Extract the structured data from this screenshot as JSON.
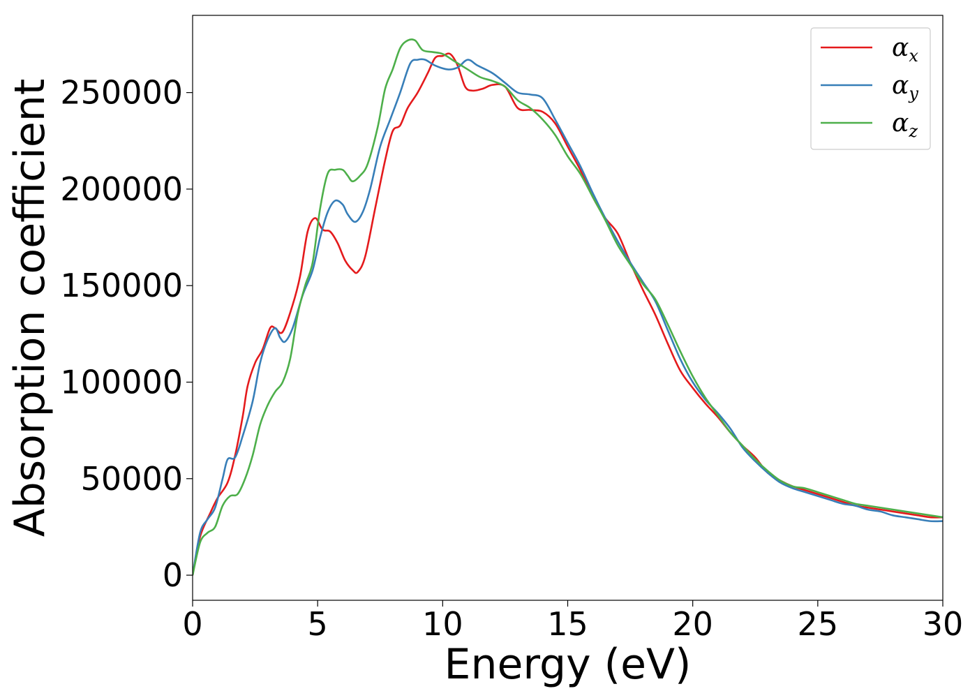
{
  "chart_data": {
    "type": "line",
    "title": "",
    "xlabel": "Energy (eV)",
    "ylabel": "Absorption coefficient",
    "xlim": [
      0,
      30
    ],
    "ylim": [
      -13000,
      290000
    ],
    "xticks": [
      0,
      5,
      10,
      15,
      20,
      25,
      30
    ],
    "yticks": [
      0,
      50000,
      100000,
      150000,
      200000,
      250000
    ],
    "grid": false,
    "legend_position": "top-right",
    "series": [
      {
        "name": "αx",
        "symbol": "α",
        "subscript": "x",
        "color": "#e41a1c",
        "points": [
          [
            0,
            0
          ],
          [
            0.3,
            20000
          ],
          [
            0.7,
            32000
          ],
          [
            1.0,
            40000
          ],
          [
            1.4,
            48000
          ],
          [
            1.7,
            62000
          ],
          [
            2.0,
            82000
          ],
          [
            2.2,
            98000
          ],
          [
            2.5,
            110000
          ],
          [
            2.8,
            117000
          ],
          [
            3.1,
            128000
          ],
          [
            3.3,
            128000
          ],
          [
            3.6,
            126000
          ],
          [
            4.0,
            140000
          ],
          [
            4.3,
            155000
          ],
          [
            4.6,
            178000
          ],
          [
            4.9,
            185000
          ],
          [
            5.2,
            179000
          ],
          [
            5.5,
            178000
          ],
          [
            5.8,
            172000
          ],
          [
            6.1,
            163000
          ],
          [
            6.4,
            158000
          ],
          [
            6.6,
            157000
          ],
          [
            6.9,
            165000
          ],
          [
            7.3,
            190000
          ],
          [
            7.7,
            215000
          ],
          [
            8.0,
            230000
          ],
          [
            8.3,
            233000
          ],
          [
            8.6,
            242000
          ],
          [
            9.0,
            250000
          ],
          [
            9.4,
            260000
          ],
          [
            9.7,
            268000
          ],
          [
            10.0,
            269000
          ],
          [
            10.3,
            270000
          ],
          [
            10.6,
            264000
          ],
          [
            10.9,
            253000
          ],
          [
            11.2,
            251000
          ],
          [
            11.6,
            252000
          ],
          [
            12.0,
            254000
          ],
          [
            12.5,
            253000
          ],
          [
            13.0,
            242000
          ],
          [
            13.5,
            241000
          ],
          [
            14.0,
            240000
          ],
          [
            14.5,
            234000
          ],
          [
            15.0,
            222000
          ],
          [
            15.5,
            210000
          ],
          [
            16.0,
            196000
          ],
          [
            16.5,
            185000
          ],
          [
            17.0,
            177000
          ],
          [
            17.5,
            162000
          ],
          [
            18.0,
            148000
          ],
          [
            18.5,
            135000
          ],
          [
            19.0,
            120000
          ],
          [
            19.5,
            106000
          ],
          [
            20.0,
            97000
          ],
          [
            20.5,
            89000
          ],
          [
            21.0,
            82000
          ],
          [
            21.5,
            74000
          ],
          [
            22.0,
            67000
          ],
          [
            22.5,
            61000
          ],
          [
            23.0,
            53000
          ],
          [
            23.5,
            49000
          ],
          [
            24.0,
            46000
          ],
          [
            24.5,
            44000
          ],
          [
            25.0,
            42000
          ],
          [
            25.5,
            40000
          ],
          [
            26.0,
            38000
          ],
          [
            26.5,
            36000
          ],
          [
            27.0,
            35000
          ],
          [
            27.5,
            34000
          ],
          [
            28.0,
            33000
          ],
          [
            28.5,
            32000
          ],
          [
            29.0,
            31000
          ],
          [
            29.5,
            30000
          ],
          [
            30.0,
            30000
          ]
        ]
      },
      {
        "name": "αy",
        "symbol": "α",
        "subscript": "y",
        "color": "#377eb8",
        "points": [
          [
            0,
            0
          ],
          [
            0.3,
            22000
          ],
          [
            0.6,
            29000
          ],
          [
            0.9,
            35000
          ],
          [
            1.2,
            50000
          ],
          [
            1.4,
            60000
          ],
          [
            1.7,
            61000
          ],
          [
            2.0,
            72000
          ],
          [
            2.4,
            90000
          ],
          [
            2.7,
            110000
          ],
          [
            3.0,
            122000
          ],
          [
            3.3,
            128000
          ],
          [
            3.5,
            123000
          ],
          [
            3.7,
            121000
          ],
          [
            4.0,
            128000
          ],
          [
            4.4,
            145000
          ],
          [
            4.8,
            158000
          ],
          [
            5.1,
            175000
          ],
          [
            5.4,
            188000
          ],
          [
            5.7,
            194000
          ],
          [
            6.0,
            192000
          ],
          [
            6.2,
            187000
          ],
          [
            6.5,
            183000
          ],
          [
            6.8,
            188000
          ],
          [
            7.1,
            200000
          ],
          [
            7.5,
            222000
          ],
          [
            7.9,
            236000
          ],
          [
            8.3,
            250000
          ],
          [
            8.7,
            265000
          ],
          [
            9.0,
            267000
          ],
          [
            9.3,
            267000
          ],
          [
            9.7,
            264000
          ],
          [
            10.2,
            262000
          ],
          [
            10.6,
            263000
          ],
          [
            11.0,
            267000
          ],
          [
            11.4,
            264000
          ],
          [
            12.0,
            260000
          ],
          [
            12.5,
            255000
          ],
          [
            13.0,
            250000
          ],
          [
            13.5,
            249000
          ],
          [
            14.0,
            247000
          ],
          [
            14.5,
            236000
          ],
          [
            15.0,
            224000
          ],
          [
            15.5,
            212000
          ],
          [
            16.0,
            198000
          ],
          [
            16.5,
            185000
          ],
          [
            17.0,
            173000
          ],
          [
            17.5,
            162000
          ],
          [
            18.0,
            152000
          ],
          [
            18.5,
            142000
          ],
          [
            19.0,
            127000
          ],
          [
            19.5,
            112000
          ],
          [
            20.0,
            100000
          ],
          [
            20.5,
            91000
          ],
          [
            21.0,
            84000
          ],
          [
            21.5,
            76000
          ],
          [
            22.0,
            66000
          ],
          [
            22.5,
            59000
          ],
          [
            23.0,
            53000
          ],
          [
            23.5,
            48000
          ],
          [
            24.0,
            45000
          ],
          [
            24.5,
            43000
          ],
          [
            25.0,
            41000
          ],
          [
            25.5,
            39000
          ],
          [
            26.0,
            37000
          ],
          [
            26.5,
            36000
          ],
          [
            27.0,
            34000
          ],
          [
            27.5,
            33000
          ],
          [
            28.0,
            31000
          ],
          [
            28.5,
            30000
          ],
          [
            29.0,
            29000
          ],
          [
            29.5,
            28000
          ],
          [
            30.0,
            28000
          ]
        ]
      },
      {
        "name": "αz",
        "symbol": "α",
        "subscript": "z",
        "color": "#4daf4a",
        "points": [
          [
            0,
            0
          ],
          [
            0.3,
            17000
          ],
          [
            0.6,
            22000
          ],
          [
            0.9,
            25000
          ],
          [
            1.2,
            36000
          ],
          [
            1.5,
            41000
          ],
          [
            1.8,
            42000
          ],
          [
            2.1,
            50000
          ],
          [
            2.4,
            62000
          ],
          [
            2.7,
            78000
          ],
          [
            3.0,
            88000
          ],
          [
            3.3,
            95000
          ],
          [
            3.6,
            100000
          ],
          [
            3.9,
            112000
          ],
          [
            4.2,
            135000
          ],
          [
            4.5,
            150000
          ],
          [
            4.8,
            162000
          ],
          [
            5.1,
            190000
          ],
          [
            5.4,
            208000
          ],
          [
            5.7,
            210000
          ],
          [
            6.0,
            210000
          ],
          [
            6.2,
            207000
          ],
          [
            6.4,
            204000
          ],
          [
            6.7,
            207000
          ],
          [
            7.0,
            213000
          ],
          [
            7.4,
            232000
          ],
          [
            7.7,
            252000
          ],
          [
            8.0,
            262000
          ],
          [
            8.3,
            273000
          ],
          [
            8.6,
            277000
          ],
          [
            8.9,
            277000
          ],
          [
            9.2,
            272000
          ],
          [
            9.6,
            271000
          ],
          [
            10.0,
            270000
          ],
          [
            10.5,
            266000
          ],
          [
            11.0,
            262000
          ],
          [
            11.5,
            258000
          ],
          [
            12.0,
            256000
          ],
          [
            12.5,
            253000
          ],
          [
            13.0,
            246000
          ],
          [
            13.5,
            242000
          ],
          [
            14.0,
            236000
          ],
          [
            14.5,
            228000
          ],
          [
            15.0,
            217000
          ],
          [
            15.5,
            208000
          ],
          [
            16.0,
            196000
          ],
          [
            16.5,
            184000
          ],
          [
            17.0,
            171000
          ],
          [
            17.5,
            161000
          ],
          [
            18.0,
            151000
          ],
          [
            18.5,
            143000
          ],
          [
            19.0,
            130000
          ],
          [
            19.5,
            116000
          ],
          [
            20.0,
            103000
          ],
          [
            20.5,
            92000
          ],
          [
            21.0,
            83000
          ],
          [
            21.5,
            74000
          ],
          [
            22.0,
            67000
          ],
          [
            22.5,
            60000
          ],
          [
            23.0,
            54000
          ],
          [
            23.5,
            49000
          ],
          [
            24.0,
            46000
          ],
          [
            24.5,
            45000
          ],
          [
            25.0,
            43000
          ],
          [
            25.5,
            41000
          ],
          [
            26.0,
            39000
          ],
          [
            26.5,
            37000
          ],
          [
            27.0,
            36000
          ],
          [
            27.5,
            35000
          ],
          [
            28.0,
            34000
          ],
          [
            28.5,
            33000
          ],
          [
            29.0,
            32000
          ],
          [
            29.5,
            31000
          ],
          [
            30.0,
            30000
          ]
        ]
      }
    ]
  }
}
